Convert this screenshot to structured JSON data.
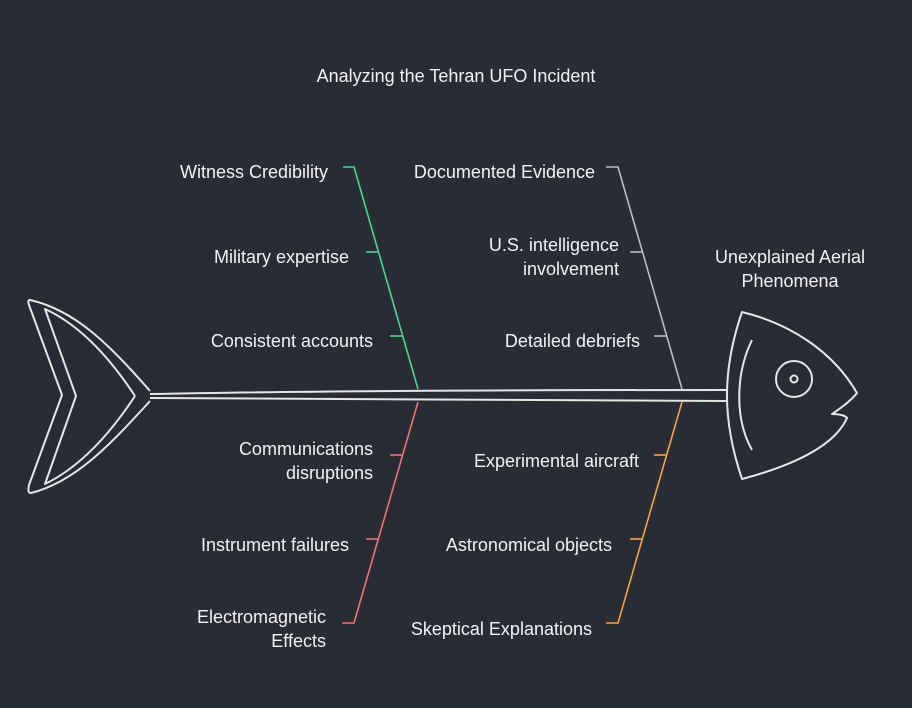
{
  "title": "Analyzing the Tehran UFO Incident",
  "effect": {
    "line1": "Unexplained Aerial",
    "line2": "Phenomena"
  },
  "categories": [
    {
      "name": "Witness Credibility",
      "color": "#4fd68e",
      "causes": [
        {
          "line1": "Military expertise",
          "line2": ""
        },
        {
          "line1": "Consistent accounts",
          "line2": ""
        }
      ]
    },
    {
      "name": "Documented Evidence",
      "color": "#bdbdbd",
      "causes": [
        {
          "line1": "U.S. intelligence",
          "line2": "involvement"
        },
        {
          "line1": "Detailed debriefs",
          "line2": ""
        }
      ]
    },
    {
      "name": "Electromagnetic Effects",
      "name_line1": "Electromagnetic",
      "name_line2": "Effects",
      "color": "#f07272",
      "causes": [
        {
          "line1": "Communications",
          "line2": "disruptions"
        },
        {
          "line1": "Instrument failures",
          "line2": ""
        }
      ]
    },
    {
      "name": "Skeptical Explanations",
      "color": "#f5a442",
      "causes": [
        {
          "line1": "Experimental aircraft",
          "line2": ""
        },
        {
          "line1": "Astronomical objects",
          "line2": ""
        }
      ]
    }
  ]
}
